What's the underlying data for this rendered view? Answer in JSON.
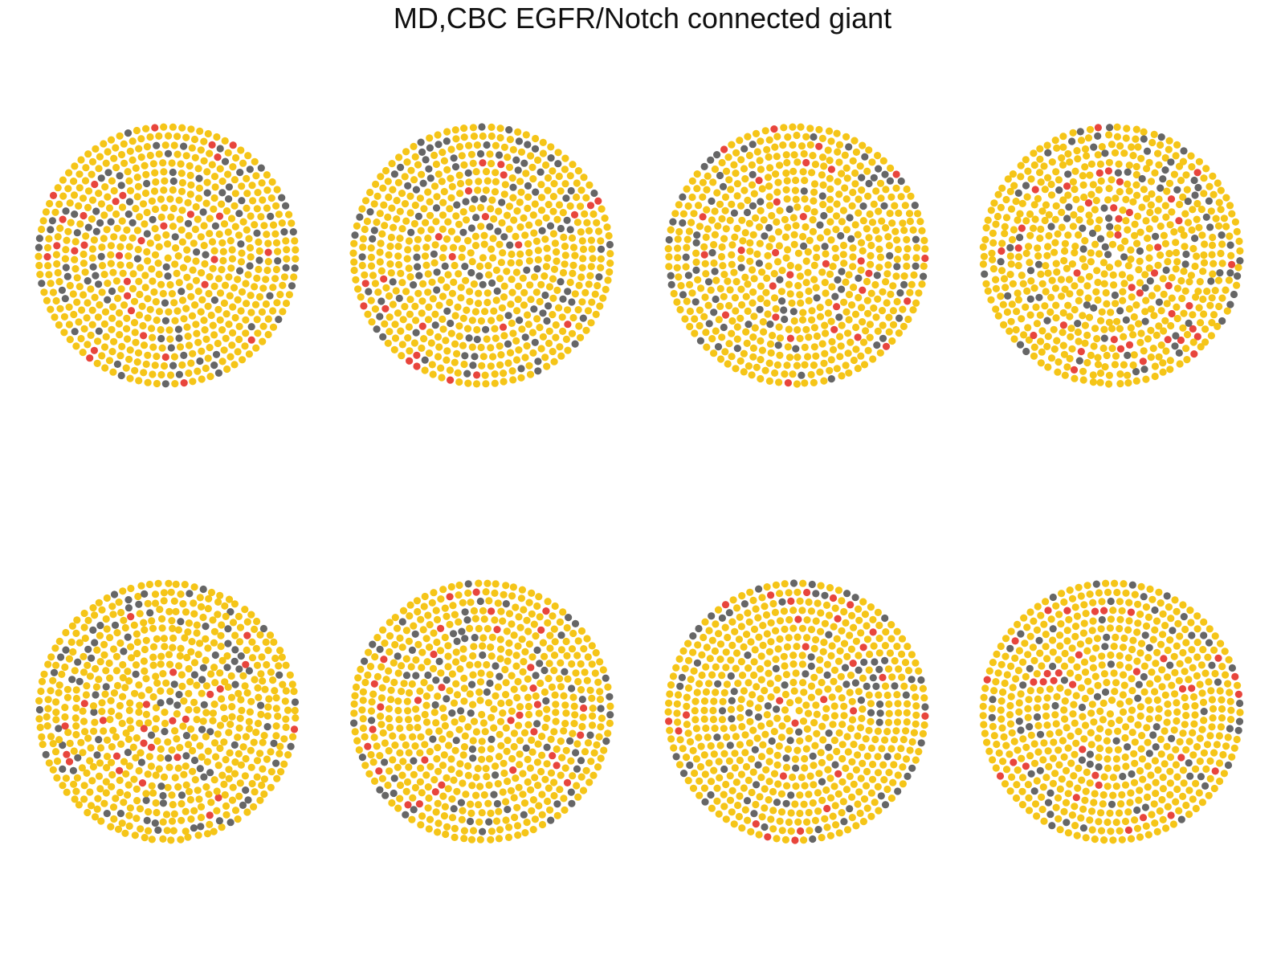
{
  "title": "MD,CBC EGFR/Notch connected giant",
  "colors": {
    "yellow": "#F5C518",
    "gray": "#666666",
    "red": "#E8453C",
    "background": "#FFFFFF"
  },
  "networks": [
    {
      "label": "",
      "gray_fraction": 0.17,
      "red_fraction": 0.04,
      "disorder": 0.08,
      "seed": 11
    },
    {
      "label": "",
      "gray_fraction": 0.15,
      "red_fraction": 0.04,
      "disorder": 0.2,
      "seed": 23
    },
    {
      "label": "",
      "gray_fraction": 0.14,
      "red_fraction": 0.04,
      "disorder": 0.35,
      "seed": 37
    },
    {
      "label": "",
      "gray_fraction": 0.13,
      "red_fraction": 0.05,
      "disorder": 0.55,
      "seed": 41
    },
    {
      "label": "",
      "gray_fraction": 0.15,
      "red_fraction": 0.04,
      "disorder": 0.55,
      "seed": 53
    },
    {
      "label": "",
      "gray_fraction": 0.14,
      "red_fraction": 0.04,
      "disorder": 0.3,
      "seed": 67
    },
    {
      "label": "",
      "gray_fraction": 0.14,
      "red_fraction": 0.04,
      "disorder": 0.1,
      "seed": 71
    },
    {
      "label": "",
      "gray_fraction": 0.15,
      "red_fraction": 0.04,
      "disorder": 0.05,
      "seed": 89
    }
  ]
}
